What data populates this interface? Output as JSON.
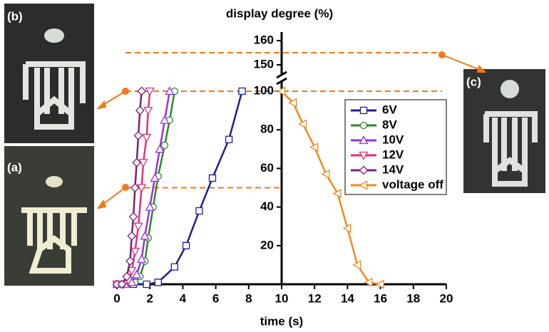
{
  "chart_data": {
    "type": "line",
    "y_label": "display degree (%)",
    "x_label": "time (s)",
    "xlim": [
      0,
      20
    ],
    "xticks": [
      0,
      2,
      4,
      6,
      8,
      10,
      12,
      14,
      16,
      18,
      20
    ],
    "ylim": [
      0,
      160
    ],
    "yticks": [
      20,
      40,
      60,
      80,
      100,
      150,
      160
    ],
    "y_break": [
      100,
      150
    ],
    "reference_lines": [
      155,
      100,
      50
    ],
    "series": [
      {
        "name": "6V",
        "color": "#1f1f8f",
        "marker": "square",
        "x": [
          0,
          1,
          1.8,
          2.5,
          3.5,
          4.2,
          5.0,
          5.8,
          6.8,
          7.6
        ],
        "values": [
          0,
          0,
          0,
          1,
          9,
          20,
          38,
          55,
          75,
          100
        ]
      },
      {
        "name": "8V",
        "color": "#2a8a2a",
        "marker": "circle",
        "x": [
          0,
          0.6,
          1.1,
          1.4,
          1.7,
          1.9,
          2.2,
          2.5,
          2.9,
          3.2,
          3.5
        ],
        "values": [
          0,
          0,
          1,
          4,
          12,
          24,
          40,
          56,
          72,
          85,
          100
        ]
      },
      {
        "name": "10V",
        "color": "#9b30e0",
        "marker": "triangle-up",
        "x": [
          0,
          0.5,
          0.9,
          1.2,
          1.5,
          1.7,
          2.0,
          2.3,
          2.6,
          2.9,
          3.2
        ],
        "values": [
          0,
          0,
          1,
          5,
          13,
          25,
          40,
          55,
          70,
          85,
          100
        ]
      },
      {
        "name": "12V",
        "color": "#e0307a",
        "marker": "triangle-down",
        "x": [
          0,
          0.4,
          0.7,
          0.9,
          1.1,
          1.3,
          1.5,
          1.6,
          1.8,
          1.9,
          2.0
        ],
        "values": [
          0,
          0,
          2,
          7,
          17,
          30,
          50,
          63,
          76,
          90,
          100
        ]
      },
      {
        "name": "14V",
        "color": "#7a1f7a",
        "marker": "diamond",
        "x": [
          0,
          0.3,
          0.6,
          0.8,
          0.9,
          1.0,
          1.1,
          1.2,
          1.3,
          1.4,
          1.5
        ],
        "values": [
          0,
          0,
          4,
          12,
          25,
          35,
          50,
          63,
          77,
          90,
          100
        ]
      },
      {
        "name": "voltage off",
        "color": "#f08a1a",
        "marker": "triangle-left",
        "x": [
          10,
          10.7,
          11.3,
          12.0,
          12.7,
          13.4,
          14.0,
          14.6,
          15.3,
          16.0
        ],
        "values": [
          100,
          94,
          83,
          71,
          57,
          47,
          29,
          10,
          1,
          0
        ]
      }
    ]
  },
  "images": [
    {
      "label": "(b)"
    },
    {
      "label": "(a)"
    },
    {
      "label": "(c)"
    }
  ]
}
